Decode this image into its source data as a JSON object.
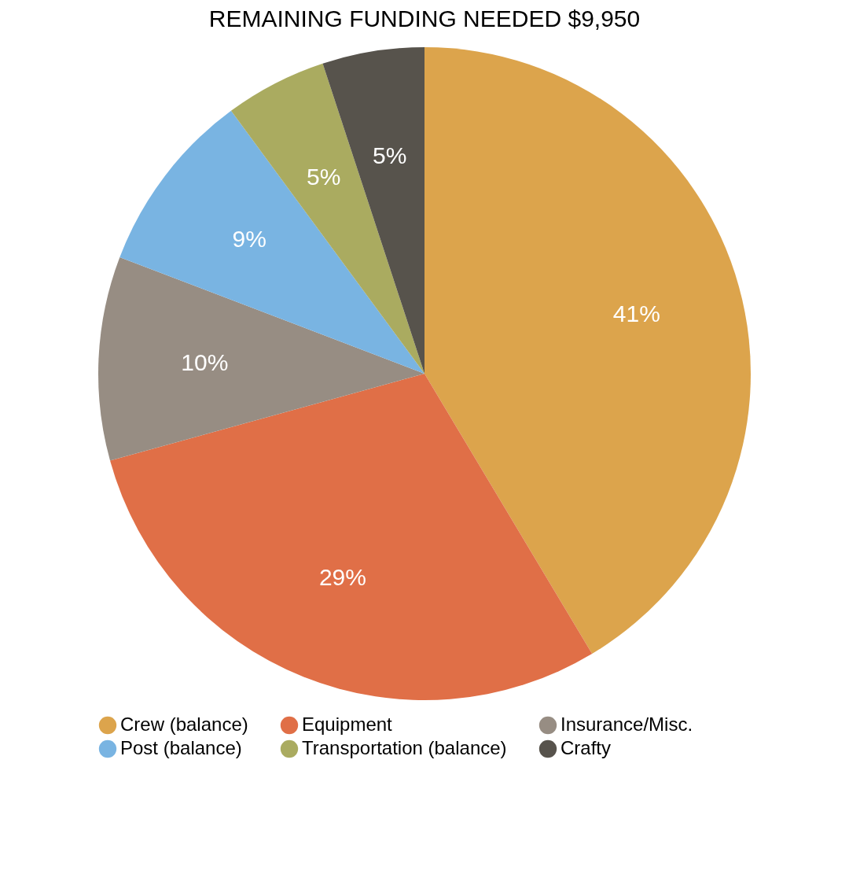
{
  "chart_data": {
    "type": "pie",
    "title": "REMAINING FUNDING NEEDED $9,950",
    "categories": [
      "Crew (balance)",
      "Equipment",
      "Insurance/Misc.",
      "Post (balance)",
      "Transportation (balance)",
      "Crafty"
    ],
    "values": [
      41,
      29,
      10,
      9,
      5,
      5
    ],
    "value_labels": [
      "41%",
      "29%",
      "10%",
      "9%",
      "5%",
      "5%"
    ],
    "colors": [
      "#dca44c",
      "#e06f47",
      "#978d83",
      "#79b4e2",
      "#aaab60",
      "#57534c"
    ],
    "legend": "bottom"
  }
}
